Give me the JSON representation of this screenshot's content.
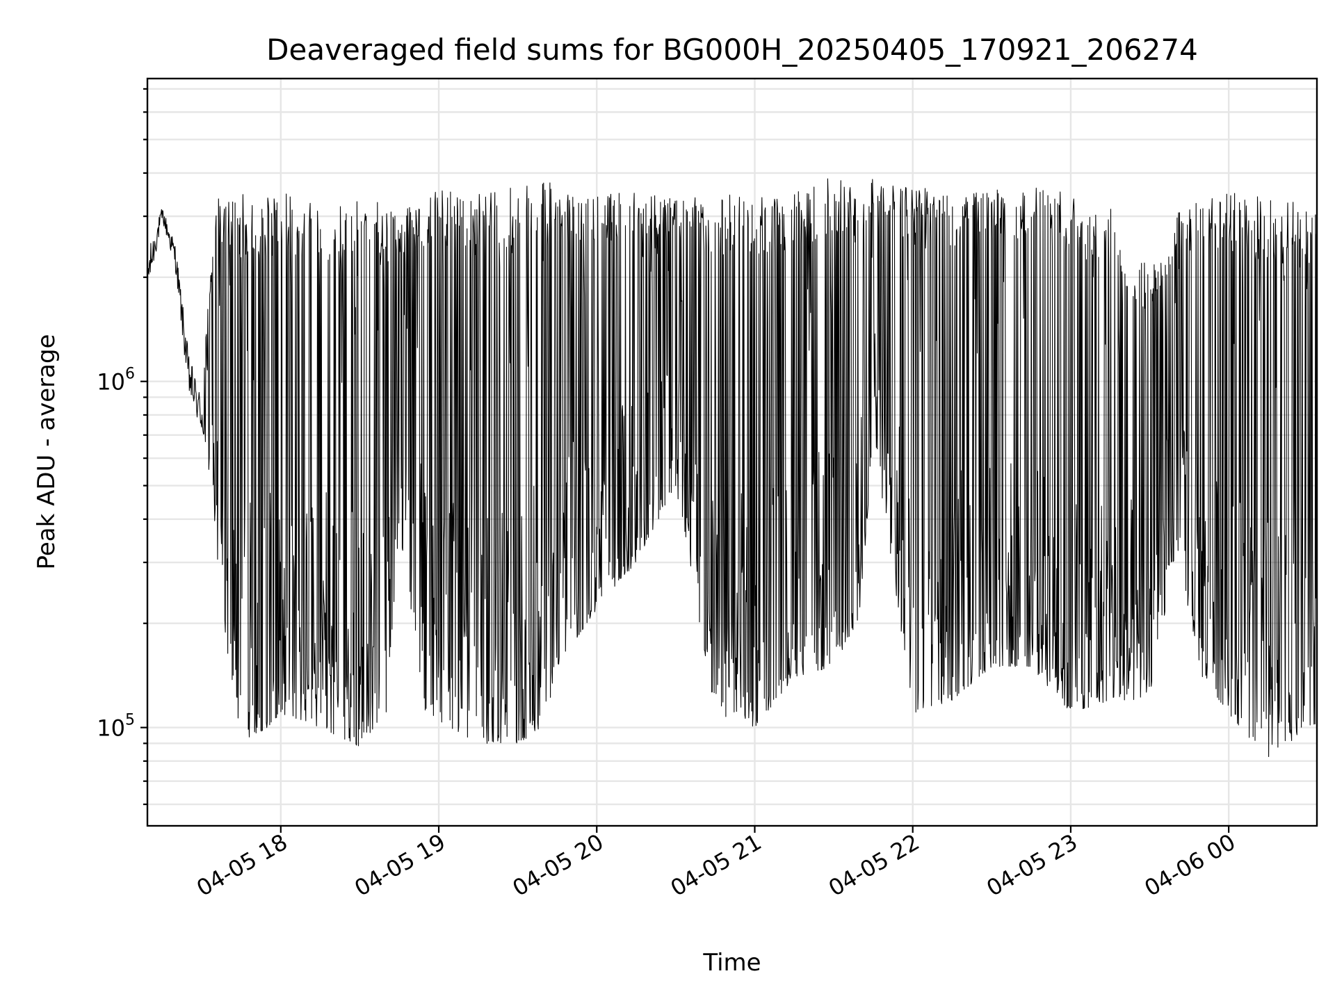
{
  "chart_data": {
    "type": "line",
    "title": "Deaveraged field sums for BG000H_20250405_170921_206274",
    "xlabel": "Time",
    "ylabel": "Peak ADU - average",
    "y_scale": "log",
    "ylim": [
      52000,
      7500000
    ],
    "xlim": [
      "2025-04-05 17:09:21",
      "2025-04-06 00:33:30"
    ],
    "grid": true,
    "x_ticks": [
      {
        "value": "2025-04-05 18:00",
        "label": "04-05 18"
      },
      {
        "value": "2025-04-05 19:00",
        "label": "04-05 19"
      },
      {
        "value": "2025-04-05 20:00",
        "label": "04-05 20"
      },
      {
        "value": "2025-04-05 21:00",
        "label": "04-05 21"
      },
      {
        "value": "2025-04-05 22:00",
        "label": "04-05 22"
      },
      {
        "value": "2025-04-05 23:00",
        "label": "04-05 23"
      },
      {
        "value": "2025-04-06 00:00",
        "label": "04-06 00"
      }
    ],
    "y_ticks": [
      {
        "value": 100000,
        "base": "10",
        "exp": "5"
      },
      {
        "value": 1000000,
        "base": "10",
        "exp": "6"
      }
    ],
    "series": [
      {
        "color": "#000000",
        "x": [
          "2025-04-05 17:09",
          "2025-04-05 17:15",
          "2025-04-05 17:20",
          "2025-04-05 17:25",
          "2025-04-05 17:30",
          "2025-04-05 17:35",
          "2025-04-05 17:40",
          "2025-04-05 17:45",
          "2025-04-05 17:50",
          "2025-04-05 17:55",
          "2025-04-05 18:00",
          "2025-04-05 18:15",
          "2025-04-05 18:30",
          "2025-04-05 18:40",
          "2025-04-05 18:45",
          "2025-04-05 18:55",
          "2025-04-05 19:15",
          "2025-04-05 19:30",
          "2025-04-05 19:40",
          "2025-04-05 19:45",
          "2025-04-05 20:00",
          "2025-04-05 20:15",
          "2025-04-05 20:30",
          "2025-04-05 20:45",
          "2025-04-05 21:00",
          "2025-04-05 21:15",
          "2025-04-05 21:30",
          "2025-04-05 21:40",
          "2025-04-05 21:45",
          "2025-04-05 22:00",
          "2025-04-05 22:15",
          "2025-04-05 22:30",
          "2025-04-05 22:45",
          "2025-04-05 23:00",
          "2025-04-05 23:15",
          "2025-04-05 23:30",
          "2025-04-05 23:40",
          "2025-04-05 23:50",
          "2025-04-06 00:00",
          "2025-04-06 00:15",
          "2025-04-06 00:30"
        ],
        "low": [
          1700000,
          2900000,
          2100000,
          900000,
          700000,
          350000,
          160000,
          90000,
          95000,
          100000,
          110000,
          100000,
          88000,
          110000,
          380000,
          110000,
          90000,
          90000,
          100000,
          150000,
          220000,
          300000,
          500000,
          110000,
          100000,
          140000,
          150000,
          210000,
          700000,
          110000,
          120000,
          150000,
          150000,
          110000,
          120000,
          120000,
          330000,
          140000,
          110000,
          80000,
          100000
        ],
        "high": [
          2300000,
          3200000,
          2500000,
          1200000,
          900000,
          3400000,
          3300000,
          3500000,
          3300000,
          3400000,
          3500000,
          3400000,
          3500000,
          3200000,
          3000000,
          3600000,
          3500000,
          3700000,
          3800000,
          3700000,
          3500000,
          3500000,
          3400000,
          3500000,
          3400000,
          3500000,
          4000000,
          3600000,
          3900000,
          3700000,
          3600000,
          3800000,
          3700000,
          3500000,
          3200000,
          2100000,
          3100000,
          3400000,
          3500000,
          3500000,
          3200000
        ]
      }
    ]
  }
}
